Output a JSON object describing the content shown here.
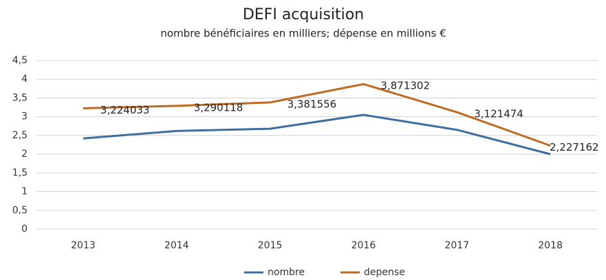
{
  "chart_data": {
    "type": "line",
    "title": "DEFI acquisition",
    "subtitle": "nombre bénéficiaires en milliers; dépense en millions €",
    "categories": [
      "2013",
      "2014",
      "2015",
      "2016",
      "2017",
      "2018"
    ],
    "series": [
      {
        "name": "nombre",
        "color": "#3c6e9e",
        "values": [
          2.42,
          2.62,
          2.68,
          3.05,
          2.65,
          2.0
        ]
      },
      {
        "name": "depense",
        "color": "#bd6a22",
        "values": [
          3.224033,
          3.290118,
          3.381556,
          3.871302,
          3.121474,
          2.227162
        ],
        "value_labels": [
          "3,224033",
          "3,290118",
          "3,381556",
          "3,871302",
          "3,121474",
          "2,227162"
        ]
      }
    ],
    "ylim": [
      0,
      4.5
    ],
    "yticks": [
      0,
      {
        "value": 0.5,
        "label": "0,5"
      },
      1,
      {
        "value": 1.5,
        "label": "1,5"
      },
      2,
      {
        "value": 2.5,
        "label": "2,5"
      },
      3,
      {
        "value": 3.5,
        "label": "3,5"
      },
      4,
      {
        "value": 4.5,
        "label": "4,5"
      }
    ],
    "grid": true,
    "legend": "bottom"
  }
}
